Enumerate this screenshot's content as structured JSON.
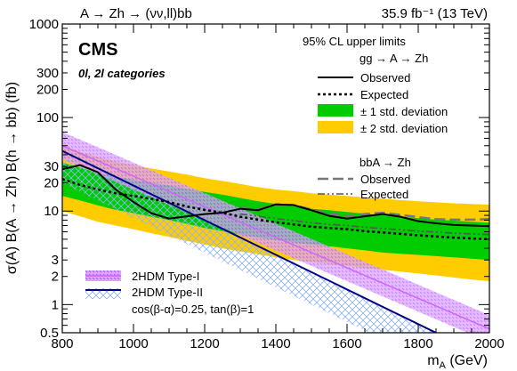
{
  "header": {
    "process": "A → Zh → (νν,ll)bb",
    "lumi": "35.9 fb⁻¹ (13 TeV)"
  },
  "badges": {
    "experiment": "CMS",
    "categories": "0l, 2l categories"
  },
  "legend": {
    "heading": "95% CL upper limits",
    "gg_title": "gg → A → Zh",
    "gg_observed": "Observed",
    "gg_expected": "Expected",
    "band1": "± 1 std. deviation",
    "band2": "± 2 std. deviation",
    "bb_title": "bbA → Zh",
    "bb_observed": "Observed",
    "bb_expected": "Expected",
    "thdm1": "2HDM Type-I",
    "thdm2": "2HDM Type-II",
    "thdm_params": "cos(β-α)=0.25, tan(β)=1"
  },
  "colors": {
    "band1": "#00cc00",
    "band2": "#ffcc00",
    "thdm1": "#cc66ff",
    "thdm2_line": "#00008b",
    "thdm2_hatch": "#8fb3ff",
    "bb_observed": "#777777"
  },
  "chart_data": {
    "type": "line",
    "xlabel": "m_A (GeV)",
    "ylabel": "σ(A) B(A → Zh) B(h → bb) (fb)",
    "xlim": [
      800,
      2000
    ],
    "ylim": [
      0.5,
      1000
    ],
    "y_scale": "log",
    "x_ticks": [
      800,
      1000,
      1200,
      1400,
      1600,
      1800,
      2000
    ],
    "y_ticks": [
      {
        "v": 0.5,
        "label": "0.5"
      },
      {
        "v": 1,
        "label": "1"
      },
      {
        "v": 2,
        "label": "2"
      },
      {
        "v": 3,
        "label": "3"
      },
      {
        "v": 10,
        "label": "10"
      },
      {
        "v": 20,
        "label": "20"
      },
      {
        "v": 30,
        "label": "30"
      },
      {
        "v": 100,
        "label": "100"
      },
      {
        "v": 200,
        "label": "200"
      },
      {
        "v": 300,
        "label": "300"
      },
      {
        "v": 1000,
        "label": "1000"
      }
    ],
    "x": [
      800,
      850,
      900,
      950,
      1000,
      1050,
      1100,
      1150,
      1200,
      1250,
      1300,
      1350,
      1400,
      1450,
      1500,
      1550,
      1600,
      1650,
      1700,
      1750,
      1800,
      1850,
      1900,
      1950,
      2000
    ],
    "series": [
      {
        "name": "Observed",
        "key": "obs",
        "values": [
          28,
          31,
          26,
          17,
          12.5,
          9.5,
          8.3,
          8.8,
          9.3,
          9.6,
          10.6,
          10.2,
          11.8,
          11.6,
          10.2,
          8.9,
          8.3,
          8.8,
          9.3,
          8.7,
          7.8,
          7.4,
          7.1,
          7.0,
          6.9
        ]
      },
      {
        "name": "Expected",
        "key": "exp",
        "values": [
          22,
          19,
          17,
          15.5,
          14.5,
          13.5,
          12.5,
          11.2,
          10.3,
          9.6,
          8.7,
          8.1,
          7.6,
          7.2,
          6.8,
          6.6,
          6.4,
          6.1,
          5.9,
          5.7,
          5.5,
          5.35,
          5.2,
          5.1,
          5.0
        ]
      },
      {
        "name": "± 1 std. deviation",
        "key": "band1",
        "lo": [
          14.5,
          13,
          11.5,
          10.3,
          9.5,
          8.7,
          8.0,
          7.3,
          6.6,
          6.1,
          5.6,
          5.2,
          4.9,
          4.6,
          4.4,
          4.2,
          4.0,
          3.8,
          3.6,
          3.5,
          3.4,
          3.3,
          3.2,
          3.1,
          3.0
        ],
        "hi": [
          33,
          29,
          26,
          23.5,
          21.5,
          20,
          18.8,
          17.3,
          16,
          15,
          13.8,
          12.7,
          11.9,
          11.2,
          10.6,
          10.2,
          9.8,
          9.4,
          9.0,
          8.7,
          8.4,
          8.1,
          7.9,
          7.7,
          7.5
        ]
      },
      {
        "name": "± 2 std. deviation",
        "key": "band2",
        "lo": [
          10,
          8.8,
          7.7,
          7.0,
          6.4,
          5.8,
          5.3,
          4.8,
          4.4,
          4.0,
          3.7,
          3.45,
          3.2,
          3.0,
          2.85,
          2.7,
          2.6,
          2.45,
          2.35,
          2.25,
          2.15,
          2.05,
          1.95,
          1.85,
          1.78
        ],
        "hi": [
          50,
          43,
          38,
          34,
          31,
          28.5,
          26.5,
          24.5,
          22.5,
          21,
          19.5,
          18,
          17,
          16.3,
          15.5,
          15,
          14.5,
          14,
          13.5,
          13.1,
          12.7,
          12.4,
          12.1,
          11.9,
          11.7
        ]
      },
      {
        "name": "Observed (bbA → Zh)",
        "key": "bb_obs",
        "values": [
          null,
          null,
          null,
          null,
          null,
          null,
          null,
          null,
          null,
          null,
          10.9,
          10.5,
          11.8,
          11.6,
          10.4,
          9.3,
          8.9,
          9.3,
          9.6,
          9.1,
          8.6,
          8.2,
          8.1,
          8.1,
          8.2
        ]
      },
      {
        "name": "Expected (bbA → Zh)",
        "key": "bb_exp",
        "values": [
          null,
          null,
          null,
          null,
          null,
          null,
          null,
          null,
          null,
          null,
          9.3,
          8.8,
          8.3,
          7.9,
          7.5,
          7.2,
          7.0,
          6.7,
          6.5,
          6.3,
          6.1,
          5.95,
          5.8,
          5.7,
          5.6
        ]
      },
      {
        "name": "2HDM Type-I",
        "key": "thdm1",
        "center": [
          [
            800,
            50
          ],
          [
            2000,
            0.55
          ]
        ],
        "lo_factor": 0.72,
        "hi_factor": 1.4
      },
      {
        "name": "2HDM Type-II",
        "key": "thdm2",
        "center": [
          [
            800,
            44
          ],
          [
            1850,
            0.5
          ]
        ],
        "lo_factor": 0.45,
        "hi_factor": 1.0
      }
    ]
  }
}
